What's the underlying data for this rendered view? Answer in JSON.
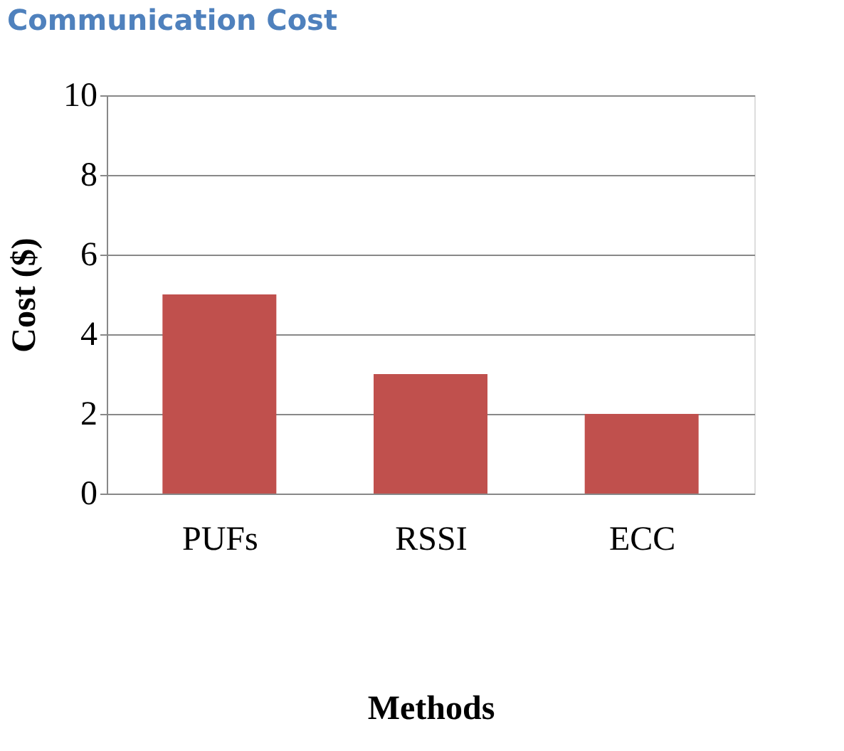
{
  "chart_data": {
    "type": "bar",
    "title": "Communication Cost",
    "xlabel": "Methods",
    "ylabel": "Cost ($)",
    "categories": [
      "PUFs",
      "RSSI",
      "ECC"
    ],
    "series": [
      {
        "color": "#c0504d",
        "values": [
          5,
          3,
          2
        ]
      }
    ],
    "ylim": [
      0,
      10
    ],
    "yticks": [
      0,
      2,
      4,
      6,
      8,
      10
    ],
    "grid": "y",
    "legend": false
  }
}
